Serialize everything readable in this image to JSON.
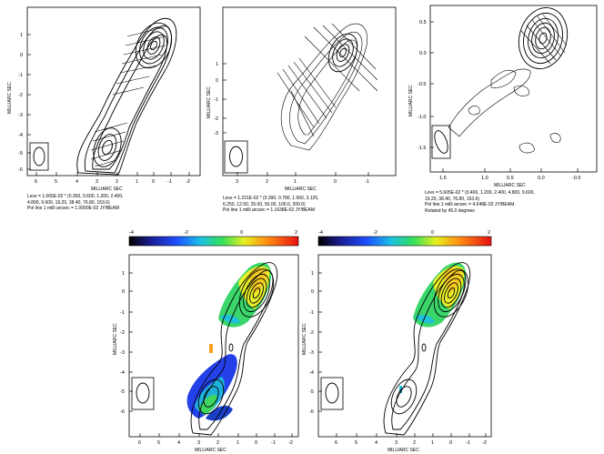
{
  "figure": {
    "axis_labels": {
      "x": "MILLIARC SEC",
      "y": "MILLIARC SEC"
    },
    "panels": [
      {
        "id": "a",
        "xticks": [
          "6",
          "5",
          "4",
          "3",
          "2",
          "1",
          "0",
          "-1",
          "-2"
        ],
        "yticks": [
          "1",
          "0",
          "-1",
          "-2",
          "-3",
          "-4",
          "-5",
          "-6"
        ],
        "caption": [
          "Levs = 1.065E-02 * (0.300, 0.600, 1.200, 2.400,",
          "4.800, 9.600, 19.20, 38.40, 76.80, 153.6)",
          "Pol line 1 milli arcsec = 1.0000E-02 JY/BEAM"
        ]
      },
      {
        "id": "b",
        "xticks": [
          "3",
          "2",
          "1",
          "0",
          "-1"
        ],
        "yticks": [
          "1",
          "0",
          "-1",
          "-2",
          "-3"
        ],
        "caption": [
          "Levs = 1.221E-02 * (0.390, 0.780, 1.560, 3.125,",
          "6.250, 12.50, 25.00, 50.00, 100.0, 200.0)",
          "Pol line 1 milli arcsec = 1.1638E-02 JY/BEAM"
        ]
      },
      {
        "id": "c",
        "xticks": [
          "1.5",
          "1.0",
          "0.5",
          "0.0",
          "-0.5"
        ],
        "yticks": [
          "0.5",
          "0.0",
          "-0.5",
          "-1.0",
          "-1.5"
        ],
        "caption": [
          "Levs = 5.605E-02 * (0.400, 1.200, 2.400, 4.800, 9.600,",
          "19.20, 38.40, 76.80, 153.6)",
          "Pol line 1 milli arcsec = 4.648E-02 JY/BEAM",
          "Rotated by 45.0 degrees"
        ]
      },
      {
        "id": "d",
        "colorbar": {
          "ticks": [
            "-4",
            "-2",
            "0",
            "2"
          ],
          "range": [
            -4,
            2
          ]
        },
        "xticks": [
          "6",
          "5",
          "4",
          "3",
          "2",
          "1",
          "0",
          "-1",
          "-2"
        ],
        "yticks": [
          "1",
          "0",
          "-1",
          "-2",
          "-3",
          "-4",
          "-5",
          "-6"
        ]
      },
      {
        "id": "e",
        "colorbar": {
          "ticks": [
            "-4",
            "-2",
            "0",
            "2"
          ],
          "range": [
            -4,
            2
          ]
        },
        "xticks": [
          "6",
          "5",
          "4",
          "3",
          "2",
          "1",
          "0",
          "-1",
          "-2"
        ],
        "yticks": [
          "1",
          "0",
          "-1",
          "-2",
          "-3",
          "-4",
          "-5",
          "-6"
        ]
      }
    ]
  }
}
